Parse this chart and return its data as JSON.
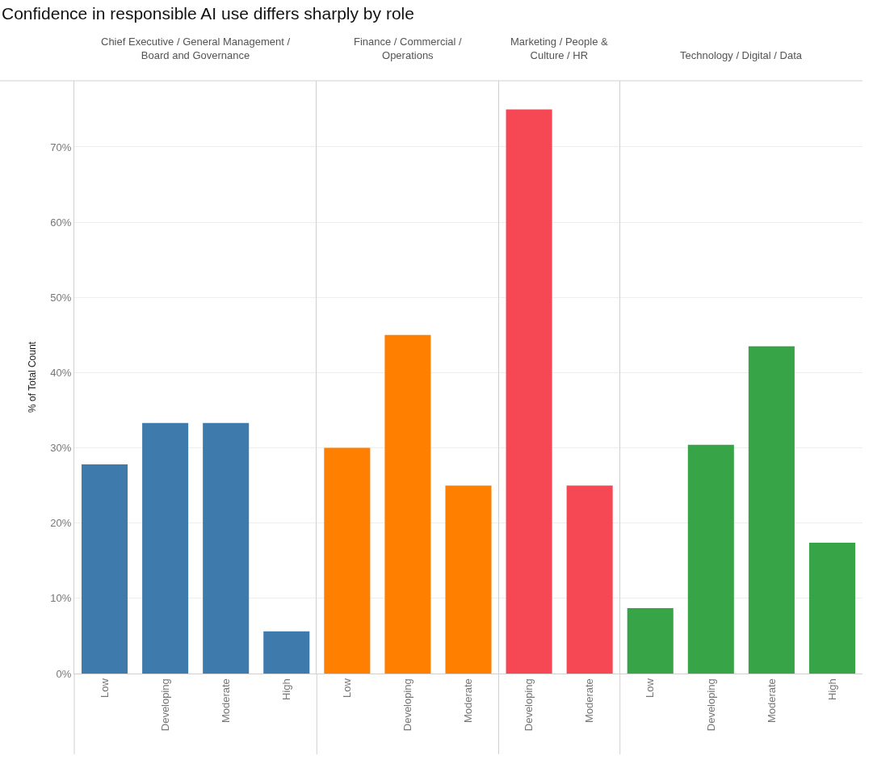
{
  "chart_data": [
    {
      "type": "bar",
      "title": "Confidence in responsible AI use differs sharply by role",
      "subtitle": "Chief Executive / General Management / Board and Governance",
      "ylabel": "% of Total Count",
      "categories": [
        "Low",
        "Developing",
        "Moderate",
        "High"
      ],
      "values": [
        27.8,
        33.3,
        33.3,
        5.6
      ],
      "color": "#3e7aab",
      "ylim": [
        0,
        78.8
      ],
      "yticks": [
        {
          "value": 0,
          "label": "0%"
        },
        {
          "value": 10,
          "label": "10%"
        },
        {
          "value": 20,
          "label": "20%"
        },
        {
          "value": 30,
          "label": "30%"
        },
        {
          "value": 40,
          "label": "40%"
        },
        {
          "value": 50,
          "label": "50%"
        },
        {
          "value": 60,
          "label": "60%"
        },
        {
          "value": 70,
          "label": "70%"
        }
      ],
      "grid": "y"
    },
    {
      "type": "bar",
      "subtitle": "Finance / Commercial / Operations",
      "categories": [
        "Low",
        "Developing",
        "Moderate"
      ],
      "values": [
        30.0,
        45.0,
        25.0
      ],
      "color": "#ff8000",
      "ylim": [
        0,
        78.8
      ],
      "yticks": [
        {
          "value": 0,
          "label": null
        },
        {
          "value": 10,
          "label": null
        },
        {
          "value": 20,
          "label": null
        },
        {
          "value": 30,
          "label": null
        },
        {
          "value": 40,
          "label": null
        },
        {
          "value": 50,
          "label": null
        },
        {
          "value": 60,
          "label": null
        },
        {
          "value": 70,
          "label": null
        }
      ],
      "grid": "y",
      "tick_labels": "x"
    },
    {
      "type": "bar",
      "subtitle": "Marketing / People & Culture / HR",
      "categories": [
        "Developing",
        "Moderate"
      ],
      "values": [
        75.0,
        25.0
      ],
      "color": "#f64755",
      "ylim": [
        0,
        78.8
      ],
      "yticks": [
        {
          "value": 0,
          "label": null
        },
        {
          "value": 10,
          "label": null
        },
        {
          "value": 20,
          "label": null
        },
        {
          "value": 30,
          "label": null
        },
        {
          "value": 40,
          "label": null
        },
        {
          "value": 50,
          "label": null
        },
        {
          "value": 60,
          "label": null
        },
        {
          "value": 70,
          "label": null
        }
      ],
      "grid": "y",
      "tick_labels": "x"
    },
    {
      "type": "bar",
      "subtitle": "Technology / Digital / Data",
      "categories": [
        "Low",
        "Developing",
        "Moderate",
        "High"
      ],
      "values": [
        8.7,
        30.4,
        43.5,
        17.4
      ],
      "color": "#37a447",
      "ylim": [
        0,
        78.8
      ],
      "yticks": [
        {
          "value": 0,
          "label": null
        },
        {
          "value": 10,
          "label": null
        },
        {
          "value": 20,
          "label": null
        },
        {
          "value": 30,
          "label": null
        },
        {
          "value": 40,
          "label": null
        },
        {
          "value": 50,
          "label": null
        },
        {
          "value": 60,
          "label": null
        },
        {
          "value": 70,
          "label": null
        }
      ],
      "grid": "y",
      "tick_labels": "x"
    }
  ]
}
